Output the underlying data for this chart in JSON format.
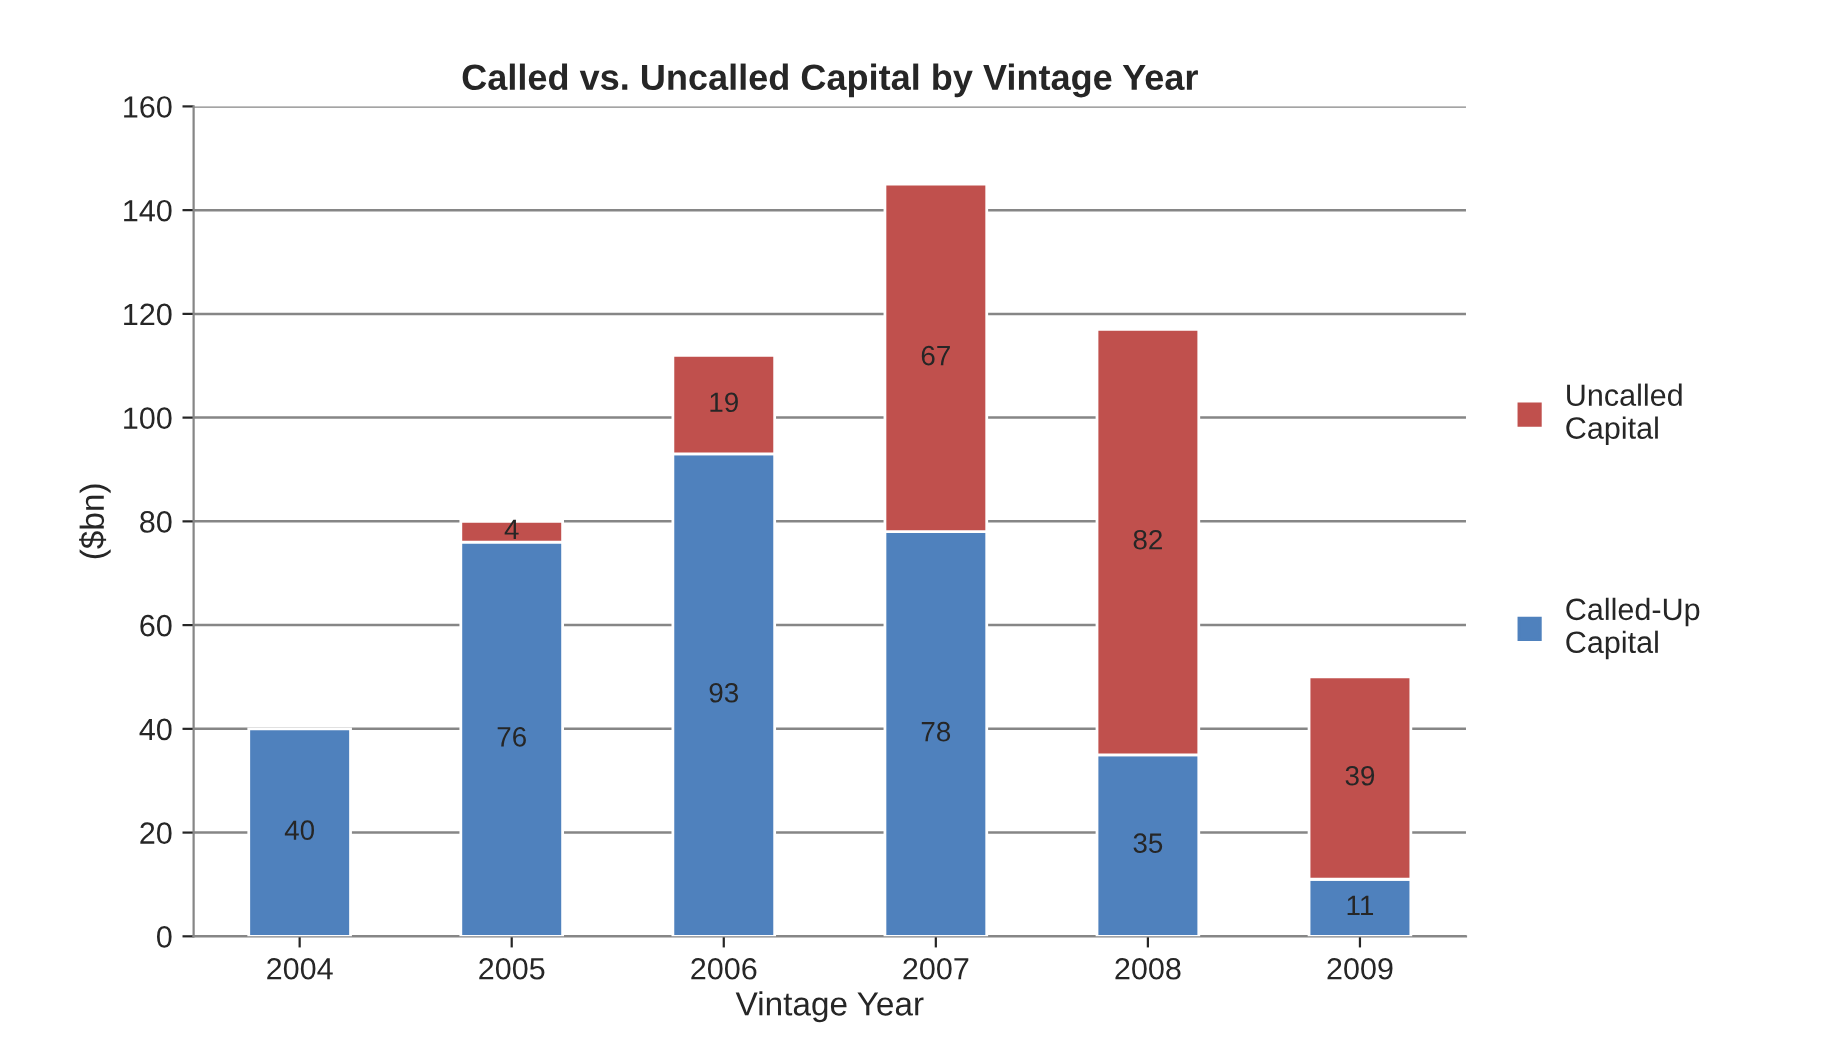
{
  "chart_data": {
    "type": "bar",
    "title": "Called vs. Uncalled Capital by Vintage Year",
    "xlabel": "Vintage Year",
    "ylabel": "($bn)",
    "categories": [
      "2004",
      "2005",
      "2006",
      "2007",
      "2008",
      "2009"
    ],
    "stacked": true,
    "series": [
      {
        "name": "Called-Up Capital",
        "color": "#4f81bd",
        "values": [
          40,
          76,
          93,
          78,
          35,
          11
        ],
        "value_labels": [
          "40",
          "76",
          "93",
          "78",
          "35",
          "11"
        ]
      },
      {
        "name": "Uncalled Capital",
        "color": "#c0504d",
        "values": [
          null,
          4,
          19,
          67,
          82,
          39
        ],
        "value_labels": [
          null,
          "4",
          "19",
          "67",
          "82",
          "39"
        ]
      }
    ],
    "ylim": [
      0,
      160
    ],
    "yticks": [
      0,
      20,
      40,
      60,
      80,
      100,
      120,
      140,
      160
    ],
    "grid": "y",
    "legend": "right"
  }
}
